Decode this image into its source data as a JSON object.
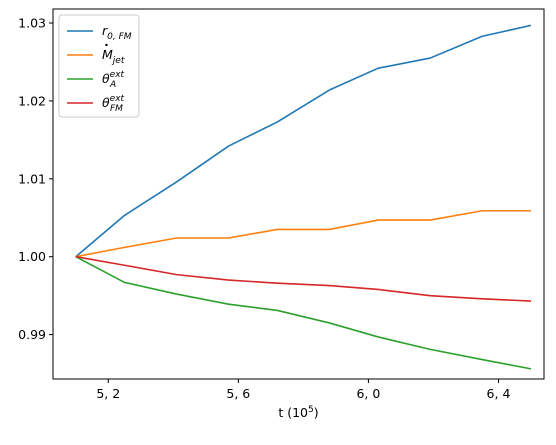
{
  "chart_data": {
    "type": "line",
    "xlabel": "t (10",
    "xlabel_exponent": "5",
    "xlabel_close": ")",
    "x_ticks": [
      {
        "value": 5.2,
        "label": "5, 2"
      },
      {
        "value": 5.6,
        "label": "5, 6"
      },
      {
        "value": 6.0,
        "label": "6, 0"
      },
      {
        "value": 6.4,
        "label": "6, 4"
      }
    ],
    "y_ticks": [
      {
        "value": 0.99,
        "label": "0.99"
      },
      {
        "value": 1.0,
        "label": "1.00"
      },
      {
        "value": 1.01,
        "label": "1.01"
      },
      {
        "value": 1.02,
        "label": "1.02"
      },
      {
        "value": 1.03,
        "label": "1.03"
      }
    ],
    "xlim": [
      5.03,
      6.54
    ],
    "ylim": [
      0.9843,
      1.0318
    ],
    "grid": false,
    "legend_position": "top-left",
    "x": [
      5.1,
      5.25,
      5.41,
      5.57,
      5.72,
      5.88,
      6.03,
      6.19,
      6.35,
      6.5
    ],
    "series": [
      {
        "name_base": "r",
        "name_sub": "0, FM",
        "name_sup": "",
        "name_dot": false,
        "color": "#1f77b4",
        "values": [
          1.0,
          1.0053,
          1.0096,
          1.0142,
          1.0173,
          1.0214,
          1.0242,
          1.0255,
          1.0283,
          1.0297
        ]
      },
      {
        "name_base": "M",
        "name_sub": "jet",
        "name_sup": "",
        "name_dot": true,
        "color": "#ff7f0e",
        "values": [
          1.0,
          1.0012,
          1.0024,
          1.0024,
          1.0035,
          1.0035,
          1.0047,
          1.0047,
          1.0059,
          1.0059
        ]
      },
      {
        "name_base": "θ",
        "name_sub": "A",
        "name_sup": "ext",
        "name_dot": false,
        "color": "#2ca02c",
        "values": [
          1.0,
          0.9967,
          0.9952,
          0.9939,
          0.9931,
          0.9915,
          0.9897,
          0.9881,
          0.9868,
          0.9856
        ]
      },
      {
        "name_base": "θ",
        "name_sub": "FM",
        "name_sup": "ext",
        "name_dot": false,
        "color": "#d62728",
        "values": [
          1.0,
          0.9989,
          0.9977,
          0.997,
          0.9966,
          0.9963,
          0.9958,
          0.995,
          0.9946,
          0.9943
        ]
      }
    ]
  }
}
